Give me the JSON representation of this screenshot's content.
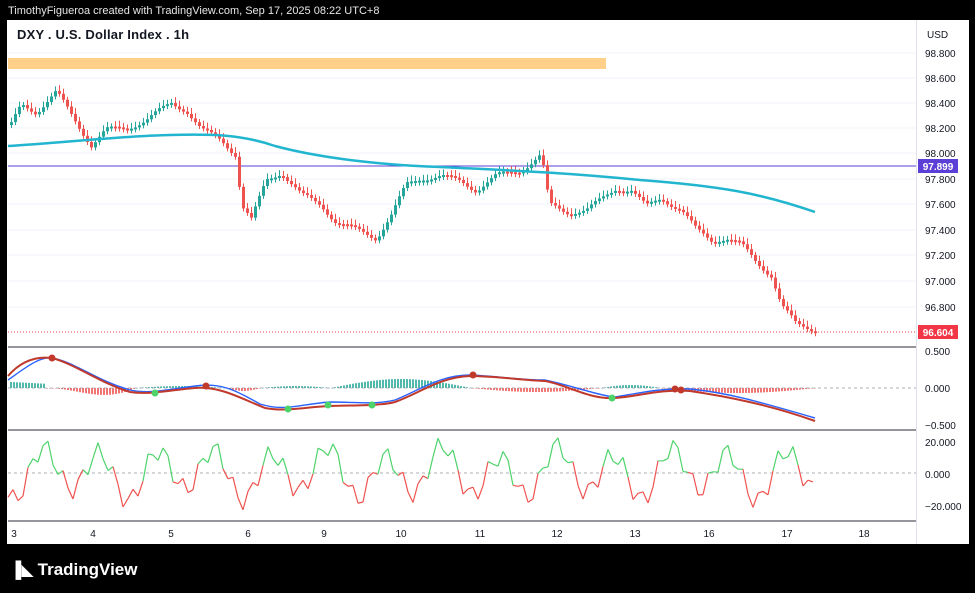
{
  "header": {
    "credit": "TimothyFigueroa created with TradingView.com, Sep 17, 2025 08:22 UTC+8"
  },
  "chart": {
    "title": "DXY . U.S. Dollar Index . 1h",
    "currency": "USD"
  },
  "price_axis": {
    "ticks": [
      "98.800",
      "98.600",
      "98.400",
      "98.200",
      "98.000",
      "97.800",
      "97.600",
      "97.400",
      "97.200",
      "97.000",
      "96.800"
    ],
    "badges": [
      {
        "value": "97.899",
        "color": "#5b3fd6"
      },
      {
        "value": "96.604",
        "color": "#f23645"
      }
    ]
  },
  "indicator1_axis": {
    "ticks": [
      "0.500",
      "0.000",
      "−0.500"
    ]
  },
  "indicator2_axis": {
    "ticks": [
      "20.000",
      "0.000",
      "−20.000"
    ]
  },
  "time_axis": {
    "labels": [
      "3",
      "4",
      "5",
      "6",
      "9",
      "10",
      "11",
      "12",
      "13",
      "16",
      "17",
      "18"
    ]
  },
  "footer": {
    "brand": "TradingView",
    "icon": "tradingview-logo-icon"
  },
  "colors": {
    "up": "#26a69a",
    "down": "#ef5350",
    "ma": "#22b5cf",
    "level_line": "#5b3fd6",
    "zone": "#ffd08a",
    "macd": "#2962ff",
    "signal": "#c0392b",
    "osc_up": "#4ed36b",
    "osc_down": "#ef5350"
  }
}
